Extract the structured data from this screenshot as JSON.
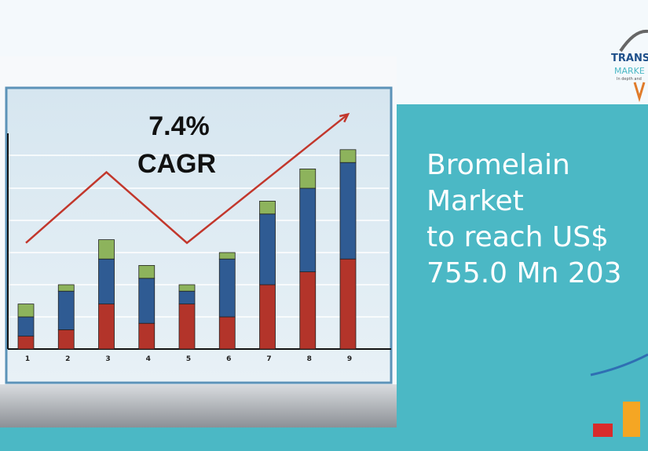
{
  "chart_data": {
    "type": "bar",
    "stacked": true,
    "annotations": [
      "7.4%",
      "CAGR"
    ],
    "categories": [
      "1",
      "2",
      "3",
      "4",
      "5",
      "6",
      "7",
      "8",
      "9"
    ],
    "series": [
      {
        "color": "#b3342a",
        "values": [
          0.4,
          0.6,
          1.4,
          0.8,
          1.4,
          1.0,
          2.0,
          2.4,
          2.8
        ]
      },
      {
        "color": "#2f5b93",
        "values": [
          0.6,
          1.2,
          1.4,
          1.4,
          0.4,
          1.8,
          2.2,
          2.6,
          3.0
        ]
      },
      {
        "color": "#8db35c",
        "values": [
          0.4,
          0.2,
          0.6,
          0.4,
          0.2,
          0.2,
          0.4,
          0.6,
          0.4
        ]
      }
    ],
    "trend": {
      "color": "#c2372c",
      "values": [
        3.3,
        4.4,
        5.5,
        4.4,
        3.3,
        4.3,
        5.3,
        6.3,
        7.3
      ]
    },
    "ylim": [
      0,
      8
    ]
  },
  "headline": [
    "Bromelain",
    "Market",
    "to reach US$",
    "755.0 Mn 203"
  ],
  "logo": {
    "line1": "TRANS",
    "line2": "MARKE",
    "tagline": "In depth and"
  }
}
